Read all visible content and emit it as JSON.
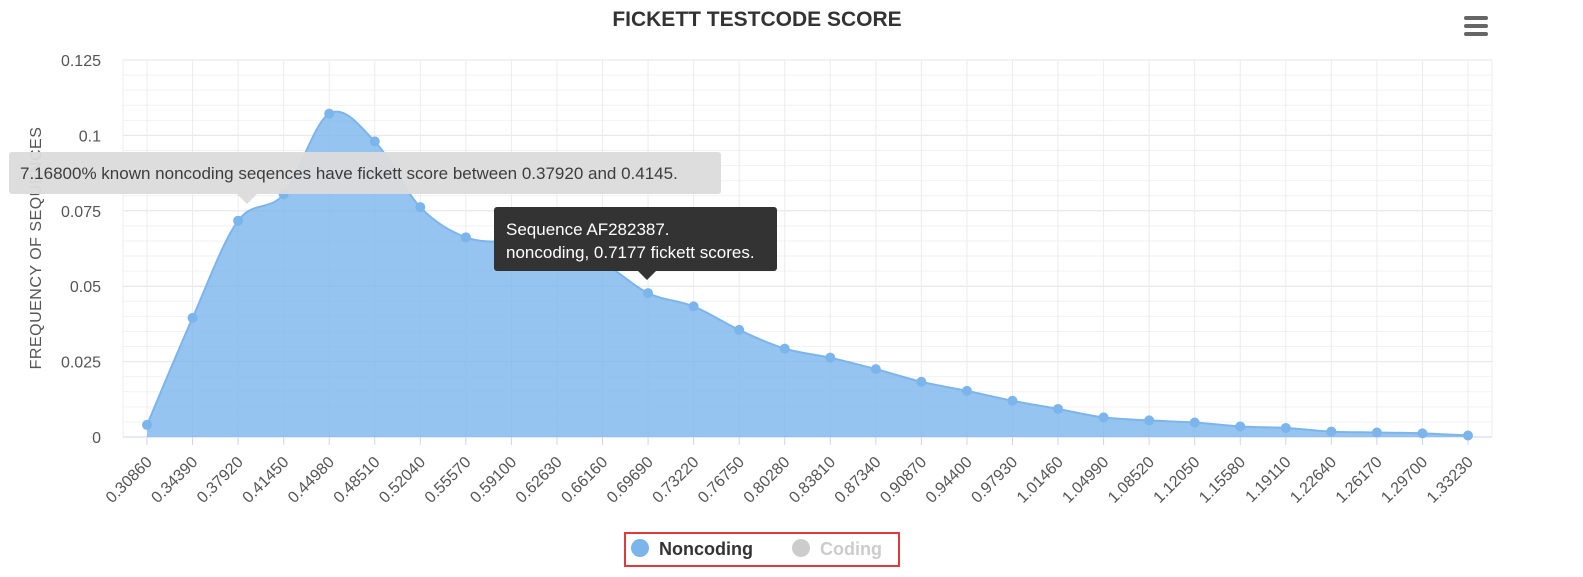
{
  "menu": {
    "icon": "hamburger-menu-icon"
  },
  "tooltips": {
    "region": "7.16800% known noncoding seqences have fickett score between 0.37920 and 0.4145.",
    "point_line1": "Sequence AF282387.",
    "point_line2": "noncoding, 0.7177 fickett scores."
  },
  "legend": [
    {
      "label": "Noncoding",
      "color": "#7cb5ec",
      "active": true
    },
    {
      "label": "Coding",
      "color": "#cccccc",
      "active": false
    }
  ],
  "chart_data": {
    "type": "area",
    "title": "FICKETT TESTCODE SCORE",
    "xlabel": "",
    "ylabel": "FREQUENCY OF SEQUENCES",
    "ylim": [
      0,
      0.125
    ],
    "yticks": [
      "0",
      "0.025",
      "0.05",
      "0.075",
      "0.1",
      "0.125"
    ],
    "grid": true,
    "legend_position": "bottom-center",
    "categories": [
      "0.30860",
      "0.34390",
      "0.37920",
      "0.41450",
      "0.44980",
      "0.48510",
      "0.52040",
      "0.55570",
      "0.59100",
      "0.62630",
      "0.66160",
      "0.69690",
      "0.73220",
      "0.76750",
      "0.80280",
      "0.83810",
      "0.87340",
      "0.90870",
      "0.94400",
      "0.97930",
      "1.01460",
      "1.04990",
      "1.08520",
      "1.12050",
      "1.15580",
      "1.19110",
      "1.22640",
      "1.26170",
      "1.29700",
      "1.33230"
    ],
    "series": [
      {
        "name": "Noncoding",
        "color": "#7cb5ec",
        "values": [
          0.004,
          0.0395,
          0.0717,
          0.0805,
          0.1072,
          0.098,
          0.0762,
          0.0662,
          0.0645,
          0.0628,
          0.0578,
          0.0477,
          0.0433,
          0.0355,
          0.0293,
          0.0263,
          0.0225,
          0.0183,
          0.0153,
          0.012,
          0.0093,
          0.0065,
          0.0055,
          0.0048,
          0.0035,
          0.003,
          0.0018,
          0.0015,
          0.0012,
          0.0005
        ]
      }
    ]
  }
}
